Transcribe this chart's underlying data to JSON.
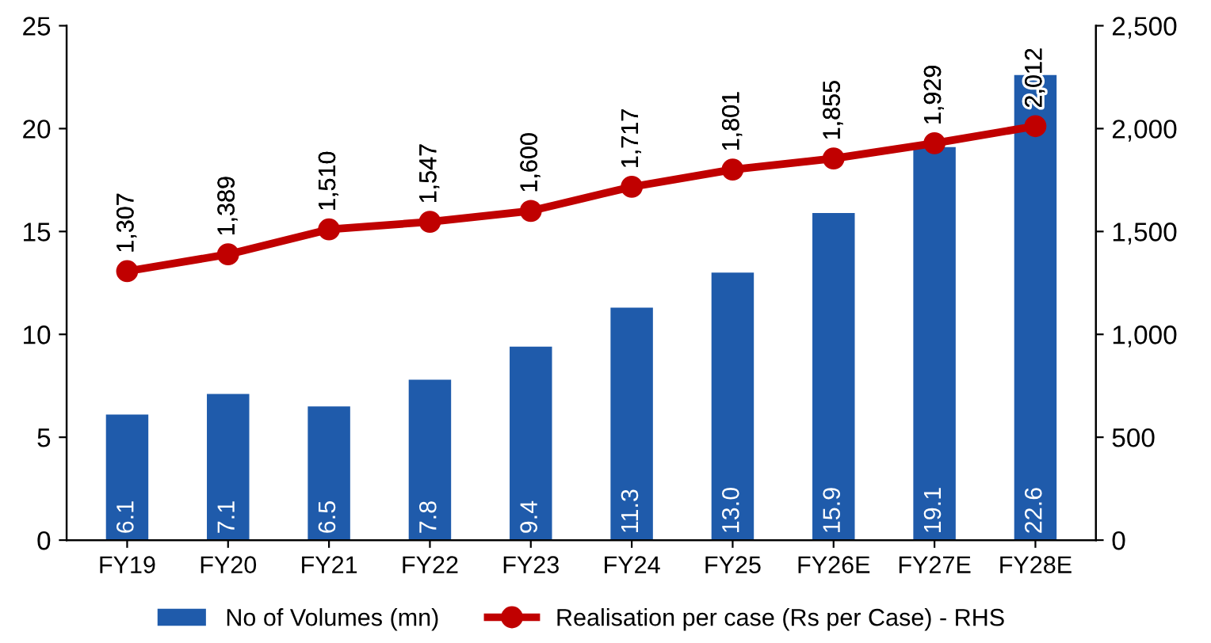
{
  "chart_data": {
    "type": "bar",
    "categories": [
      "FY19",
      "FY20",
      "FY21",
      "FY22",
      "FY23",
      "FY24",
      "FY25",
      "FY26E",
      "FY27E",
      "FY28E"
    ],
    "series": [
      {
        "name": "No of Volumes (mn)",
        "color": "#1f5bab",
        "values": [
          6.1,
          7.1,
          6.5,
          7.8,
          9.4,
          11.3,
          13.0,
          15.9,
          19.1,
          22.6
        ],
        "value_labels": [
          "6.1",
          "7.1",
          "6.5",
          "7.8",
          "9.4",
          "11.3",
          "13.0",
          "15.9",
          "19.1",
          "22.6"
        ]
      },
      {
        "name": "Realisation per case (Rs per Case) - RHS",
        "type": "line",
        "axis": "y2",
        "color": "#c00000",
        "marker": "circle",
        "values": [
          1307,
          1389,
          1510,
          1547,
          1600,
          1717,
          1801,
          1855,
          1929,
          2012
        ],
        "value_labels": [
          "1,307",
          "1,389",
          "1,510",
          "1,547",
          "1,600",
          "1,717",
          "1,801",
          "1,855",
          "1,929",
          "2,012"
        ]
      }
    ],
    "ylim": [
      0,
      25
    ],
    "yticks": [
      0,
      5,
      10,
      15,
      20,
      25
    ],
    "y2lim": [
      0,
      2500
    ],
    "y2ticks": [
      {
        "value": 0,
        "label": "0"
      },
      {
        "value": 500,
        "label": "500"
      },
      {
        "value": 1000,
        "label": "1,000"
      },
      {
        "value": 1500,
        "label": "1,500"
      },
      {
        "value": 2000,
        "label": "2,000"
      },
      {
        "value": 2500,
        "label": "2,500"
      }
    ],
    "grid": false,
    "legend": "bottom"
  }
}
